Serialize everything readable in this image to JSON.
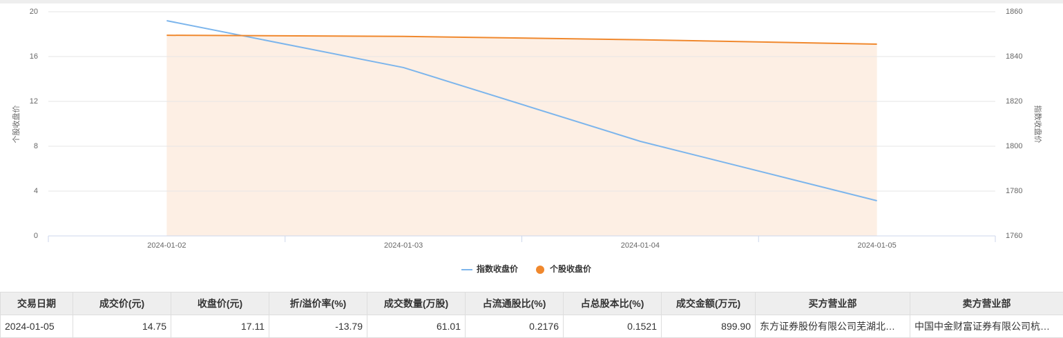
{
  "chart_data": {
    "type": "line",
    "x": [
      "2024-01-02",
      "2024-01-03",
      "2024-01-04",
      "2024-01-05"
    ],
    "series": [
      {
        "name": "指数收盘价",
        "color": "#7cb5ec",
        "axis": "y2",
        "values": [
          1856,
          1835.1,
          1802.2,
          1775.7
        ]
      },
      {
        "name": "个股收盘价",
        "color": "#f0882d",
        "area_color": "#fdefe4",
        "values": [
          17.9,
          17.8,
          17.5,
          17.11
        ]
      }
    ],
    "ylabel": "个股收盘价",
    "y2label": "指数收盘价",
    "ylim": [
      0,
      20
    ],
    "yticks": [
      0,
      4,
      8,
      12,
      16,
      20
    ],
    "y2lim": [
      1760,
      1860
    ],
    "y2ticks": [
      1760,
      1780,
      1800,
      1820,
      1840,
      1860
    ],
    "grid": true,
    "legend": "bottom"
  },
  "table": {
    "headers": [
      "交易日期",
      "成交价(元)",
      "收盘价(元)",
      "折/溢价率(%)",
      "成交数量(万股)",
      "占流通股比(%)",
      "占总股本比(%)",
      "成交金额(万元)",
      "买方营业部",
      "卖方营业部"
    ],
    "rows": [
      [
        "2024-01-05",
        "14.75",
        "17.11",
        "-13.79",
        "61.01",
        "0.2176",
        "0.1521",
        "899.90",
        "东方证券股份有限公司芜湖北…",
        "中国中金财富证券有限公司杭…"
      ]
    ]
  }
}
